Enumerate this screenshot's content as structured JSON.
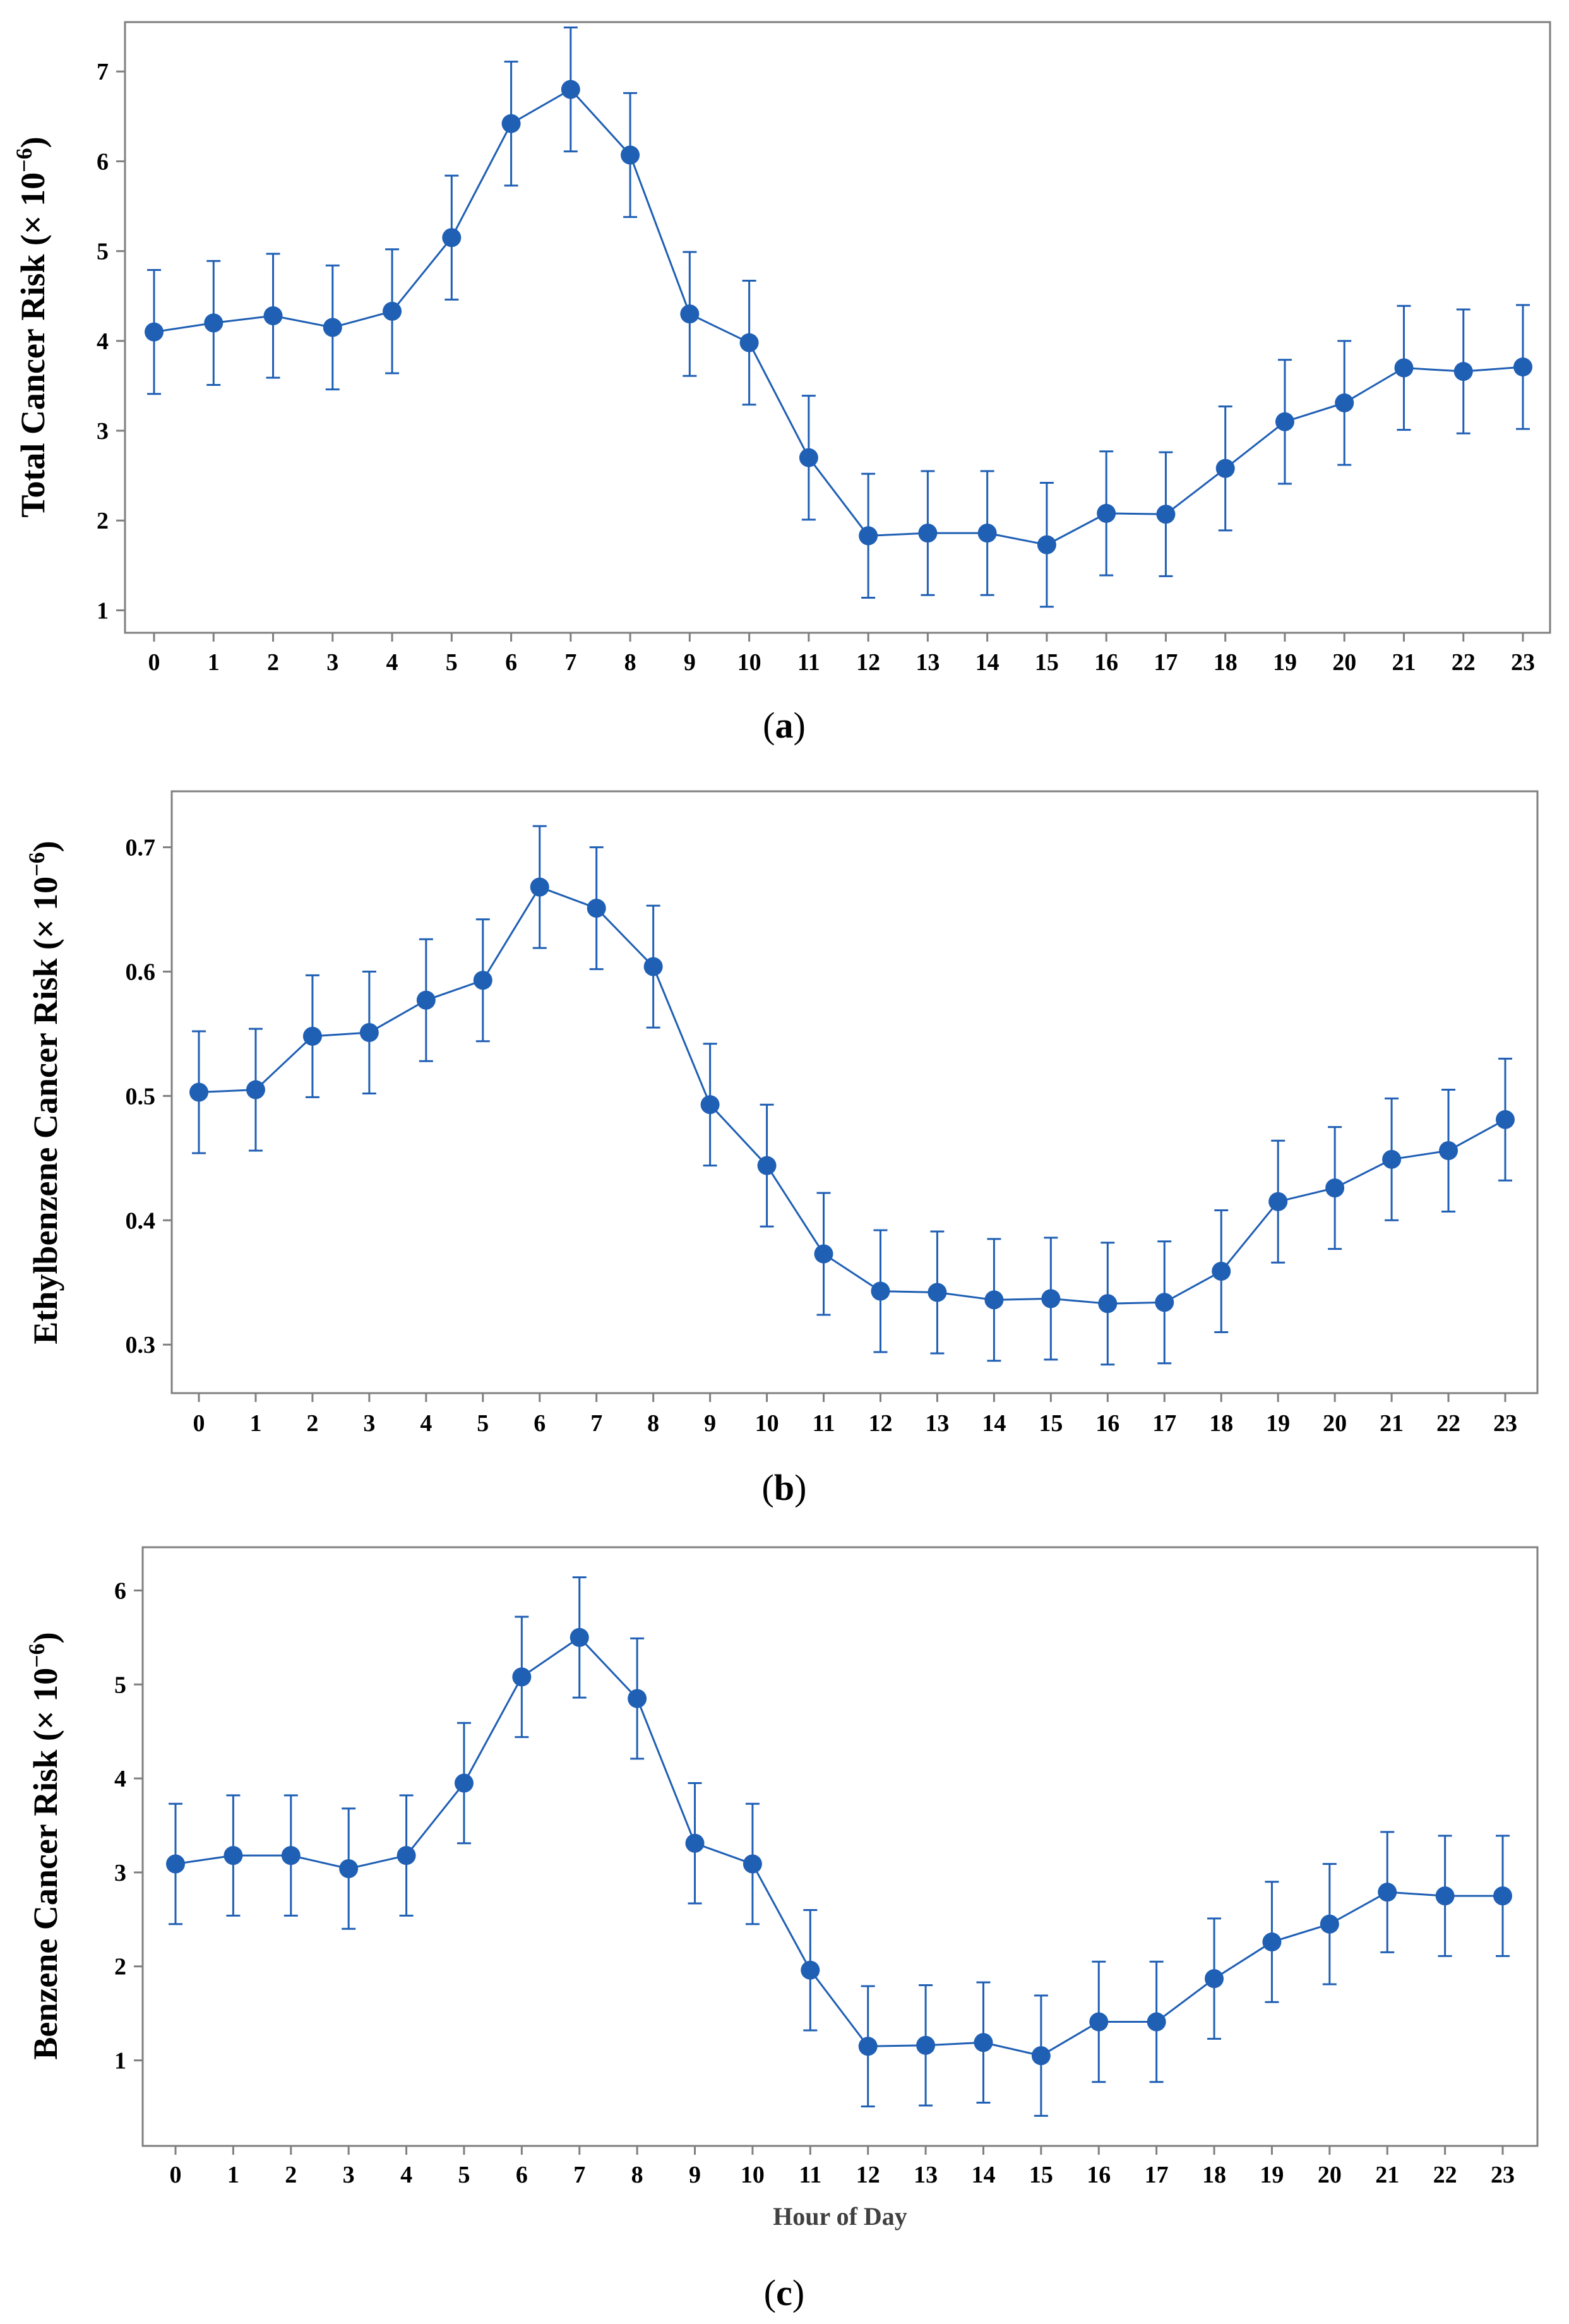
{
  "chart_data": [
    {
      "type": "line",
      "panel": "a",
      "caption": [
        "(",
        "a",
        ")"
      ],
      "ylabel": "Total Cancer Risk (× 10",
      "ylabel_exp": "−6",
      "ylabel_close": ")",
      "xlabel": "",
      "x": [
        0,
        1,
        2,
        3,
        4,
        5,
        6,
        7,
        8,
        9,
        10,
        11,
        12,
        13,
        14,
        15,
        16,
        17,
        18,
        19,
        20,
        21,
        22,
        23
      ],
      "x_tick_labels": [
        "0",
        "1",
        "2",
        "3",
        "4",
        "5",
        "6",
        "7",
        "8",
        "9",
        "10",
        "11",
        "12",
        "13",
        "14",
        "15",
        "16",
        "17",
        "18",
        "19",
        "20",
        "21",
        "22",
        "23"
      ],
      "y_ticks": [
        1,
        2,
        3,
        4,
        5,
        6,
        7
      ],
      "y_tick_labels": [
        "1",
        "2",
        "3",
        "4",
        "5",
        "6",
        "7"
      ],
      "ylim": [
        0.75,
        7.55
      ],
      "series": [
        {
          "name": "Total",
          "values": [
            4.1,
            4.2,
            4.28,
            4.15,
            4.33,
            5.15,
            6.42,
            6.8,
            6.07,
            4.3,
            3.98,
            2.7,
            1.83,
            1.86,
            1.86,
            1.73,
            2.08,
            2.07,
            2.58,
            3.1,
            3.31,
            3.7,
            3.66,
            3.71
          ],
          "err": [
            0.69,
            0.69,
            0.69,
            0.69,
            0.69,
            0.69,
            0.69,
            0.69,
            0.69,
            0.69,
            0.69,
            0.69,
            0.69,
            0.69,
            0.69,
            0.69,
            0.69,
            0.69,
            0.69,
            0.69,
            0.69,
            0.69,
            0.69,
            0.69
          ]
        }
      ]
    },
    {
      "type": "line",
      "panel": "b",
      "caption": [
        "(",
        "b",
        ")"
      ],
      "ylabel": "Ethylbenzene  Cancer Risk (× 10",
      "ylabel_exp": "−6",
      "ylabel_close": ")",
      "xlabel": "",
      "x": [
        0,
        1,
        2,
        3,
        4,
        5,
        6,
        7,
        8,
        9,
        10,
        11,
        12,
        13,
        14,
        15,
        16,
        17,
        18,
        19,
        20,
        21,
        22,
        23
      ],
      "x_tick_labels": [
        "0",
        "1",
        "2",
        "3",
        "4",
        "5",
        "6",
        "7",
        "8",
        "9",
        "10",
        "11",
        "12",
        "13",
        "14",
        "15",
        "16",
        "17",
        "18",
        "19",
        "20",
        "21",
        "22",
        "23"
      ],
      "y_ticks": [
        0.3,
        0.4,
        0.5,
        0.6,
        0.7
      ],
      "y_tick_labels": [
        "0.3",
        "0.4",
        "0.5",
        "0.6",
        "0.7"
      ],
      "ylim": [
        0.261,
        0.745
      ],
      "series": [
        {
          "name": "Ethylbenzene",
          "values": [
            0.503,
            0.505,
            0.548,
            0.551,
            0.577,
            0.593,
            0.668,
            0.651,
            0.604,
            0.493,
            0.444,
            0.373,
            0.343,
            0.342,
            0.336,
            0.337,
            0.333,
            0.334,
            0.359,
            0.415,
            0.426,
            0.449,
            0.456,
            0.481
          ],
          "err": [
            0.049,
            0.049,
            0.049,
            0.049,
            0.049,
            0.049,
            0.049,
            0.049,
            0.049,
            0.049,
            0.049,
            0.049,
            0.049,
            0.049,
            0.049,
            0.049,
            0.049,
            0.049,
            0.049,
            0.049,
            0.049,
            0.049,
            0.049,
            0.049
          ]
        }
      ]
    },
    {
      "type": "line",
      "panel": "c",
      "caption": [
        "(",
        "c",
        ")"
      ],
      "ylabel": "Benzene Cancer Risk (× 10",
      "ylabel_exp": "−6",
      "ylabel_close": ")",
      "xlabel": "Hour of Day",
      "x": [
        0,
        1,
        2,
        3,
        4,
        5,
        6,
        7,
        8,
        9,
        10,
        11,
        12,
        13,
        14,
        15,
        16,
        17,
        18,
        19,
        20,
        21,
        22,
        23
      ],
      "x_tick_labels": [
        "0",
        "1",
        "2",
        "3",
        "4",
        "5",
        "6",
        "7",
        "8",
        "9",
        "10",
        "11",
        "12",
        "13",
        "14",
        "15",
        "16",
        "17",
        "18",
        "19",
        "20",
        "21",
        "22",
        "23"
      ],
      "y_ticks": [
        1,
        2,
        3,
        4,
        5,
        6
      ],
      "y_tick_labels": [
        "1",
        "2",
        "3",
        "4",
        "5",
        "6"
      ],
      "ylim": [
        0.09,
        6.46
      ],
      "series": [
        {
          "name": "Benzene",
          "values": [
            3.09,
            3.18,
            3.18,
            3.04,
            3.18,
            3.95,
            5.08,
            5.5,
            4.85,
            3.31,
            3.09,
            1.96,
            1.15,
            1.16,
            1.19,
            1.05,
            1.41,
            1.41,
            1.87,
            2.26,
            2.45,
            2.79,
            2.75,
            2.75
          ],
          "err": [
            0.64,
            0.64,
            0.64,
            0.64,
            0.64,
            0.64,
            0.64,
            0.64,
            0.64,
            0.64,
            0.64,
            0.64,
            0.64,
            0.64,
            0.64,
            0.64,
            0.64,
            0.64,
            0.64,
            0.64,
            0.64,
            0.64,
            0.64,
            0.64
          ]
        }
      ]
    }
  ],
  "colors": {
    "series": "#1F5FB4",
    "frame": "#7F7F7F",
    "text": "#000000"
  }
}
